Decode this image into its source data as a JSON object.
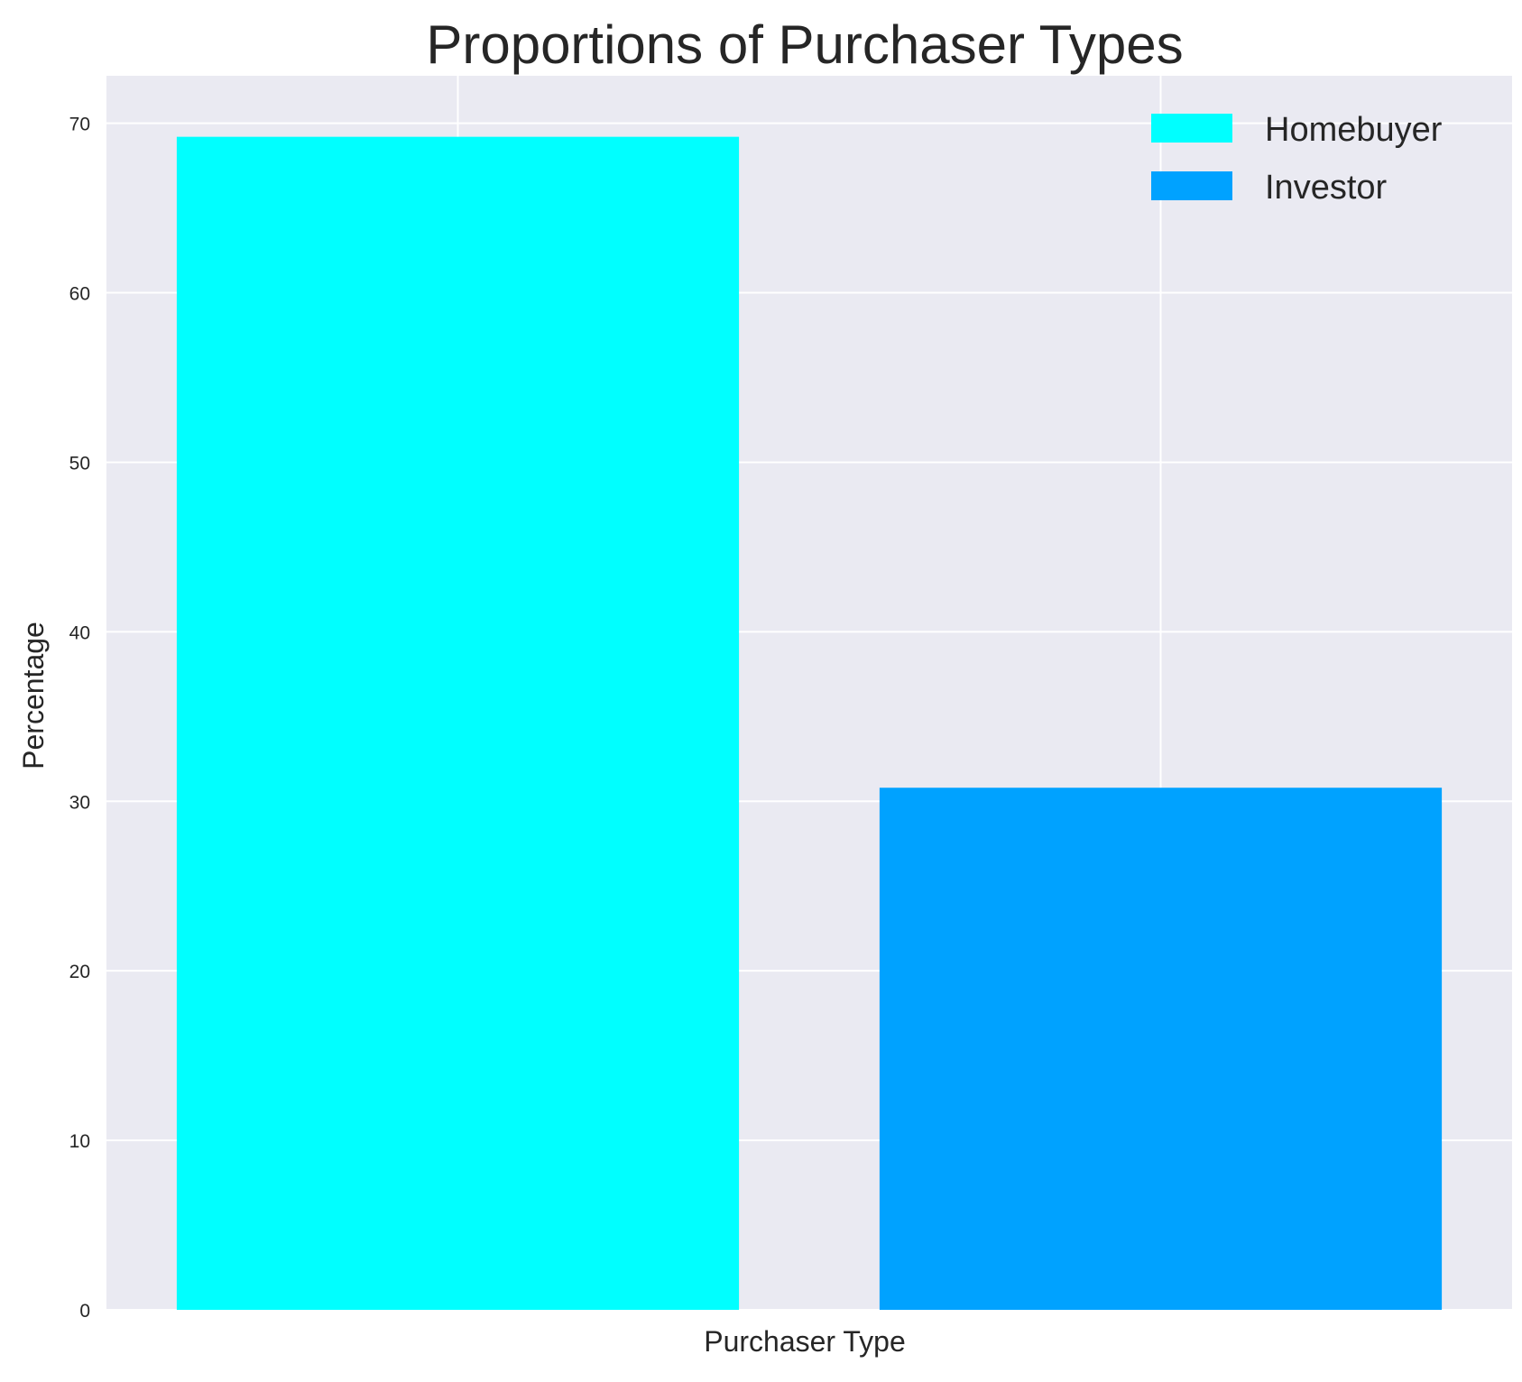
{
  "chart_data": {
    "type": "bar",
    "title": "Proportions of Purchaser Types",
    "xlabel": "Purchaser Type",
    "ylabel": "Percentage",
    "ylim": [
      0,
      72.8
    ],
    "yticks": [
      0,
      10,
      20,
      30,
      40,
      50,
      60,
      70
    ],
    "xticks": [],
    "grid": true,
    "legend_position": "top-right",
    "background": "#eaeaf2",
    "gridline_color": "#ffffff",
    "series": [
      {
        "name": "Homebuyer",
        "values": [
          69.2
        ],
        "color": "#00ffff"
      },
      {
        "name": "Investor",
        "values": [
          30.8
        ],
        "color": "#00a2ff"
      }
    ]
  }
}
